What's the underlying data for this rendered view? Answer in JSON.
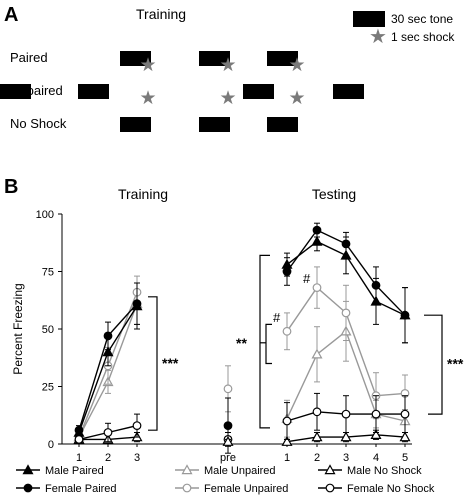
{
  "panel_a": {
    "label": "A",
    "title": "Training",
    "legend": {
      "tone_label": "30 sec tone",
      "shock_label": "1 sec shock"
    },
    "rows": [
      {
        "label": "Paired",
        "tones": [
          0,
          1,
          2
        ],
        "shocks": [
          0,
          1,
          2
        ]
      },
      {
        "label": "Unpaired",
        "tones": [
          0,
          1,
          2,
          3
        ],
        "shocks": [
          0,
          1,
          2
        ]
      },
      {
        "label": "No Shock",
        "tones": [
          0,
          1,
          2
        ],
        "shocks": []
      }
    ]
  },
  "panel_b": {
    "label": "B"
  },
  "chart_data": [
    {
      "type": "line",
      "title": "Training",
      "ylabel": "Percent Freezing",
      "ylim": [
        0,
        100
      ],
      "yticks": [
        "0",
        "25",
        "50",
        "75",
        "100"
      ],
      "categories": [
        "1",
        "2",
        "3"
      ],
      "series": [
        {
          "name": "Male Paired",
          "values": [
            5,
            40,
            60
          ],
          "errors": [
            2,
            6,
            10
          ]
        },
        {
          "name": "Female Paired",
          "values": [
            6,
            47,
            61
          ],
          "errors": [
            2,
            6,
            9
          ]
        },
        {
          "name": "Male Unpaired",
          "values": [
            3,
            27,
            61
          ],
          "errors": [
            2,
            5,
            9
          ]
        },
        {
          "name": "Female Unpaired",
          "values": [
            3,
            34,
            66
          ],
          "errors": [
            2,
            8,
            7
          ]
        },
        {
          "name": "Male No Shock",
          "values": [
            2,
            2,
            3
          ],
          "errors": [
            1,
            2,
            2
          ]
        },
        {
          "name": "Female No Shock",
          "values": [
            2,
            5,
            8
          ],
          "errors": [
            1,
            4,
            5
          ]
        }
      ],
      "annotation": "***"
    },
    {
      "type": "scatter",
      "categories": [
        "pre"
      ],
      "series": [
        {
          "name": "Female Paired",
          "values": [
            8
          ],
          "errors": [
            12
          ]
        },
        {
          "name": "Female Unpaired",
          "values": [
            24
          ],
          "errors": [
            10
          ]
        },
        {
          "name": "Female No Shock",
          "values": [
            2
          ],
          "errors": [
            3
          ]
        },
        {
          "name": "Male No Shock",
          "values": [
            1
          ],
          "errors": [
            1
          ]
        }
      ]
    },
    {
      "type": "line",
      "title": "Testing",
      "ylim": [
        0,
        100
      ],
      "categories": [
        "1",
        "2",
        "3",
        "4",
        "5"
      ],
      "series": [
        {
          "name": "Male Paired",
          "values": [
            78,
            88,
            82,
            62,
            56
          ],
          "errors": [
            5,
            4,
            8,
            10,
            12
          ]
        },
        {
          "name": "Female Paired",
          "values": [
            75,
            93,
            87,
            69,
            56
          ],
          "errors": [
            6,
            3,
            5,
            8,
            12
          ]
        },
        {
          "name": "Male Unpaired",
          "values": [
            11,
            39,
            49,
            13,
            10
          ],
          "errors": [
            8,
            12,
            13,
            6,
            5
          ]
        },
        {
          "name": "Female Unpaired",
          "values": [
            49,
            68,
            57,
            21,
            22
          ],
          "errors": [
            8,
            9,
            12,
            10,
            8
          ]
        },
        {
          "name": "Male No Shock",
          "values": [
            1,
            3,
            3,
            4,
            3
          ],
          "errors": [
            1,
            2,
            2,
            2,
            2
          ]
        },
        {
          "name": "Female No Shock",
          "values": [
            10,
            14,
            13,
            13,
            13
          ],
          "errors": [
            8,
            8,
            8,
            8,
            8
          ]
        }
      ],
      "annotations": [
        "#",
        "#",
        "**",
        "***"
      ]
    }
  ],
  "legend": [
    {
      "name": "Male Paired",
      "label": "Male Paired"
    },
    {
      "name": "Female Paired",
      "label": "Female Paired"
    },
    {
      "name": "Male Unpaired",
      "label": "Male Unpaired"
    },
    {
      "name": "Female Unpaired",
      "label": "Female Unpaired"
    },
    {
      "name": "Male No Shock",
      "label": "Male No Shock"
    },
    {
      "name": "Female No Shock",
      "label": "Female No Shock"
    }
  ],
  "styles": {
    "Male Paired": {
      "color": "#000000",
      "marker": "triangle",
      "fill": "#000000"
    },
    "Female Paired": {
      "color": "#000000",
      "marker": "circle",
      "fill": "#000000"
    },
    "Male Unpaired": {
      "color": "#999999",
      "marker": "triangle",
      "fill": "#ffffff"
    },
    "Female Unpaired": {
      "color": "#999999",
      "marker": "circle",
      "fill": "#ffffff"
    },
    "Male No Shock": {
      "color": "#000000",
      "marker": "triangle",
      "fill": "#ffffff"
    },
    "Female No Shock": {
      "color": "#000000",
      "marker": "circle",
      "fill": "#ffffff"
    }
  }
}
